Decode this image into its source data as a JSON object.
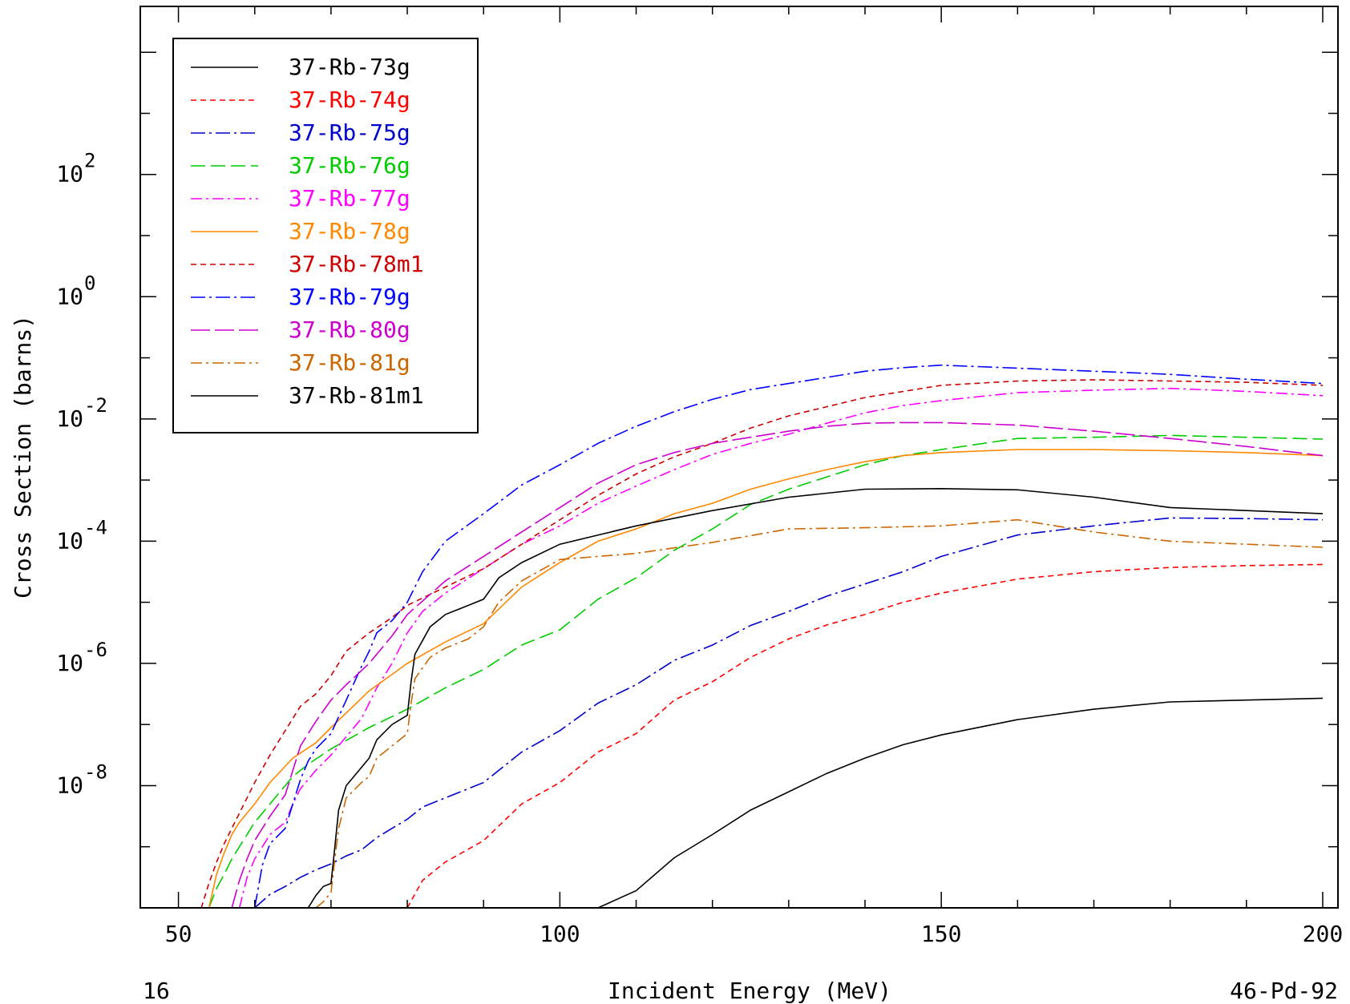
{
  "chart_data": {
    "type": "line",
    "title": "",
    "xlabel": "Incident Energy (MeV)",
    "ylabel": "Cross Section (barns)",
    "footer_left": "16",
    "footer_right": "46-Pd-92",
    "xlim": [
      45,
      202
    ],
    "ylim_log10": [
      -10,
      4.75
    ],
    "y_scale": "log",
    "x_ticks": [
      {
        "value": 50,
        "label": "50"
      },
      {
        "value": 100,
        "label": "100"
      },
      {
        "value": 150,
        "label": "150"
      },
      {
        "value": 200,
        "label": "200"
      }
    ],
    "y_ticks": [
      {
        "exp": 2,
        "base": "10",
        "power": "2"
      },
      {
        "exp": 0,
        "base": "10",
        "power": "0"
      },
      {
        "exp": -2,
        "base": "10",
        "power": "-2"
      },
      {
        "exp": -4,
        "base": "10",
        "power": "-4"
      },
      {
        "exp": -6,
        "base": "10",
        "power": "-6"
      },
      {
        "exp": -8,
        "base": "10",
        "power": "-8"
      }
    ],
    "grid": false,
    "legend_position": "top-left",
    "series": [
      {
        "name": "37-Rb-73g",
        "color": "#000000",
        "dash": "",
        "x": [
          105,
          110,
          115,
          120,
          125,
          130,
          135,
          140,
          145,
          150,
          160,
          170,
          180,
          190,
          200
        ],
        "log10_y": [
          -10,
          -9.72,
          -9.18,
          -8.8,
          -8.4,
          -8.1,
          -7.8,
          -7.55,
          -7.33,
          -7.17,
          -6.92,
          -6.75,
          -6.63,
          -6.6,
          -6.57
        ]
      },
      {
        "name": "37-Rb-74g",
        "color": "#ff0000",
        "dash": "7,5",
        "x": [
          80,
          82,
          85,
          90,
          95,
          100,
          105,
          110,
          115,
          120,
          125,
          130,
          135,
          140,
          145,
          150,
          160,
          170,
          180,
          190,
          200
        ],
        "log10_y": [
          -10,
          -9.55,
          -9.25,
          -8.9,
          -8.3,
          -7.95,
          -7.45,
          -7.15,
          -6.6,
          -6.3,
          -5.9,
          -5.6,
          -5.37,
          -5.2,
          -5.0,
          -4.85,
          -4.62,
          -4.5,
          -4.43,
          -4.4,
          -4.38
        ]
      },
      {
        "name": "37-Rb-75g",
        "color": "#0000cc",
        "dash": "18,5,3,5",
        "x": [
          60,
          62,
          64,
          66,
          68,
          70,
          72,
          74,
          76,
          78,
          80,
          82,
          85,
          90,
          95,
          100,
          105,
          110,
          115,
          120,
          125,
          130,
          135,
          140,
          145,
          150,
          160,
          170,
          180,
          190,
          200
        ],
        "log10_y": [
          -10,
          -9.78,
          -9.65,
          -9.5,
          -9.38,
          -9.28,
          -9.15,
          -9.05,
          -8.85,
          -8.7,
          -8.55,
          -8.35,
          -8.2,
          -7.95,
          -7.45,
          -7.1,
          -6.65,
          -6.35,
          -5.95,
          -5.7,
          -5.38,
          -5.15,
          -4.9,
          -4.7,
          -4.5,
          -4.25,
          -3.9,
          -3.75,
          -3.62,
          -3.63,
          -3.65
        ]
      },
      {
        "name": "37-Rb-76g",
        "color": "#00cc00",
        "dash": "18,7",
        "x": [
          54,
          55,
          56,
          57,
          58,
          59,
          60,
          61,
          62,
          63,
          64,
          65,
          67,
          70,
          75,
          80,
          85,
          90,
          95,
          100,
          105,
          110,
          115,
          120,
          125,
          130,
          135,
          140,
          145,
          150,
          160,
          170,
          180,
          190,
          200
        ],
        "log10_y": [
          -10,
          -9.68,
          -9.45,
          -9.2,
          -9.0,
          -8.8,
          -8.6,
          -8.45,
          -8.3,
          -8.15,
          -8.0,
          -7.85,
          -7.65,
          -7.4,
          -7.05,
          -6.75,
          -6.4,
          -6.1,
          -5.7,
          -5.45,
          -4.95,
          -4.6,
          -4.15,
          -3.8,
          -3.4,
          -3.15,
          -2.95,
          -2.75,
          -2.6,
          -2.5,
          -2.32,
          -2.3,
          -2.27,
          -2.3,
          -2.33
        ]
      },
      {
        "name": "37-Rb-77g",
        "color": "#ff00ff",
        "dash": "14,5,3,5",
        "x": [
          58,
          59,
          60,
          62,
          64,
          65,
          66,
          67,
          68,
          70,
          72,
          74,
          76,
          78,
          80,
          82,
          85,
          90,
          95,
          100,
          105,
          110,
          115,
          120,
          125,
          130,
          135,
          140,
          145,
          150,
          160,
          170,
          180,
          190,
          200
        ],
        "log10_y": [
          -10,
          -9.5,
          -9.2,
          -8.8,
          -8.6,
          -8.3,
          -8.05,
          -7.9,
          -7.75,
          -7.5,
          -7.2,
          -6.9,
          -6.4,
          -6.0,
          -5.5,
          -5.15,
          -4.85,
          -4.45,
          -4.05,
          -3.75,
          -3.38,
          -3.1,
          -2.83,
          -2.58,
          -2.4,
          -2.25,
          -2.07,
          -1.9,
          -1.78,
          -1.7,
          -1.57,
          -1.53,
          -1.5,
          -1.55,
          -1.62
        ]
      },
      {
        "name": "37-Rb-78g",
        "color": "#ff8800",
        "dash": "",
        "x": [
          54,
          55,
          56,
          57,
          58,
          60,
          62,
          65,
          68,
          70,
          75,
          80,
          85,
          90,
          95,
          100,
          105,
          110,
          115,
          120,
          125,
          130,
          135,
          140,
          145,
          150,
          160,
          170,
          180,
          190,
          200
        ],
        "log10_y": [
          -10,
          -9.45,
          -9.1,
          -8.8,
          -8.6,
          -8.3,
          -7.95,
          -7.55,
          -7.3,
          -7.05,
          -6.45,
          -6.0,
          -5.65,
          -5.35,
          -4.75,
          -4.35,
          -4.0,
          -3.8,
          -3.55,
          -3.38,
          -3.15,
          -2.98,
          -2.83,
          -2.7,
          -2.6,
          -2.55,
          -2.5,
          -2.5,
          -2.52,
          -2.55,
          -2.6
        ]
      },
      {
        "name": "37-Rb-78m1",
        "color": "#cc0000",
        "dash": "7,5",
        "x": [
          53,
          54,
          55,
          56,
          57,
          58,
          60,
          62,
          64,
          65,
          66,
          68,
          70,
          72,
          75,
          78,
          80,
          85,
          90,
          95,
          100,
          105,
          110,
          115,
          120,
          125,
          130,
          135,
          140,
          145,
          150,
          160,
          170,
          180,
          190,
          200
        ],
        "log10_y": [
          -10,
          -9.6,
          -9.25,
          -8.95,
          -8.7,
          -8.45,
          -7.95,
          -7.5,
          -7.1,
          -6.9,
          -6.7,
          -6.5,
          -6.2,
          -5.8,
          -5.5,
          -5.25,
          -5.05,
          -4.75,
          -4.45,
          -4.05,
          -3.65,
          -3.25,
          -2.9,
          -2.62,
          -2.4,
          -2.15,
          -1.95,
          -1.8,
          -1.65,
          -1.55,
          -1.45,
          -1.38,
          -1.36,
          -1.38,
          -1.4,
          -1.45
        ]
      },
      {
        "name": "37-Rb-79g",
        "color": "#0000ff",
        "dash": "18,5,3,5",
        "x": [
          60,
          61,
          62,
          64,
          65,
          66,
          67,
          68,
          70,
          72,
          74,
          75,
          76,
          78,
          80,
          82,
          85,
          90,
          95,
          100,
          105,
          110,
          115,
          120,
          125,
          130,
          135,
          140,
          145,
          150,
          160,
          170,
          180,
          190,
          200
        ],
        "log10_y": [
          -10,
          -9.3,
          -8.95,
          -8.7,
          -8.3,
          -7.9,
          -7.6,
          -7.4,
          -7.15,
          -6.6,
          -6.05,
          -5.8,
          -5.5,
          -5.3,
          -5.0,
          -4.5,
          -4.0,
          -3.55,
          -3.08,
          -2.75,
          -2.4,
          -2.12,
          -1.88,
          -1.68,
          -1.52,
          -1.42,
          -1.32,
          -1.22,
          -1.16,
          -1.12,
          -1.17,
          -1.22,
          -1.27,
          -1.35,
          -1.42
        ]
      },
      {
        "name": "37-Rb-80g",
        "color": "#cc00cc",
        "dash": "24,6",
        "x": [
          57,
          58,
          59,
          60,
          62,
          64,
          65,
          66,
          68,
          70,
          72,
          75,
          78,
          80,
          85,
          90,
          95,
          100,
          105,
          110,
          115,
          120,
          125,
          130,
          135,
          140,
          145,
          150,
          160,
          170,
          180,
          190,
          200
        ],
        "log10_y": [
          -10,
          -9.55,
          -9.2,
          -8.9,
          -8.5,
          -8.15,
          -7.75,
          -7.35,
          -6.95,
          -6.6,
          -6.35,
          -6.0,
          -5.55,
          -5.2,
          -4.65,
          -4.25,
          -3.85,
          -3.45,
          -3.05,
          -2.75,
          -2.55,
          -2.4,
          -2.3,
          -2.2,
          -2.12,
          -2.07,
          -2.06,
          -2.06,
          -2.1,
          -2.2,
          -2.32,
          -2.45,
          -2.6
        ]
      },
      {
        "name": "37-Rb-81g",
        "color": "#cc6600",
        "dash": "14,5,3,5",
        "x": [
          68,
          69,
          70,
          70.5,
          71,
          72,
          74,
          75,
          76,
          78,
          80,
          80.5,
          81,
          83,
          85,
          88,
          90,
          92,
          95,
          100,
          110,
          120,
          130,
          140,
          150,
          160,
          170,
          180,
          190,
          200
        ],
        "log10_y": [
          -10,
          -9.9,
          -9.75,
          -9.2,
          -8.7,
          -8.2,
          -7.95,
          -7.85,
          -7.55,
          -7.35,
          -7.15,
          -6.65,
          -6.25,
          -5.9,
          -5.75,
          -5.6,
          -5.4,
          -5.0,
          -4.65,
          -4.3,
          -4.2,
          -4.02,
          -3.8,
          -3.78,
          -3.75,
          -3.65,
          -3.85,
          -4.0,
          -4.05,
          -4.1
        ]
      },
      {
        "name": "37-Rb-81m1",
        "color": "#000000",
        "dash": "",
        "x": [
          67,
          68,
          69,
          70,
          70.5,
          71,
          72,
          74,
          75,
          76,
          78,
          80,
          80.5,
          81,
          83,
          85,
          88,
          90,
          92,
          95,
          100,
          110,
          120,
          130,
          140,
          150,
          160,
          170,
          180,
          190,
          200
        ],
        "log10_y": [
          -10,
          -9.8,
          -9.65,
          -9.6,
          -9.0,
          -8.4,
          -8.0,
          -7.7,
          -7.55,
          -7.25,
          -7.0,
          -6.85,
          -6.3,
          -5.85,
          -5.4,
          -5.2,
          -5.05,
          -4.95,
          -4.6,
          -4.35,
          -4.05,
          -3.75,
          -3.5,
          -3.28,
          -3.15,
          -3.14,
          -3.16,
          -3.28,
          -3.45,
          -3.5,
          -3.55
        ]
      }
    ]
  }
}
